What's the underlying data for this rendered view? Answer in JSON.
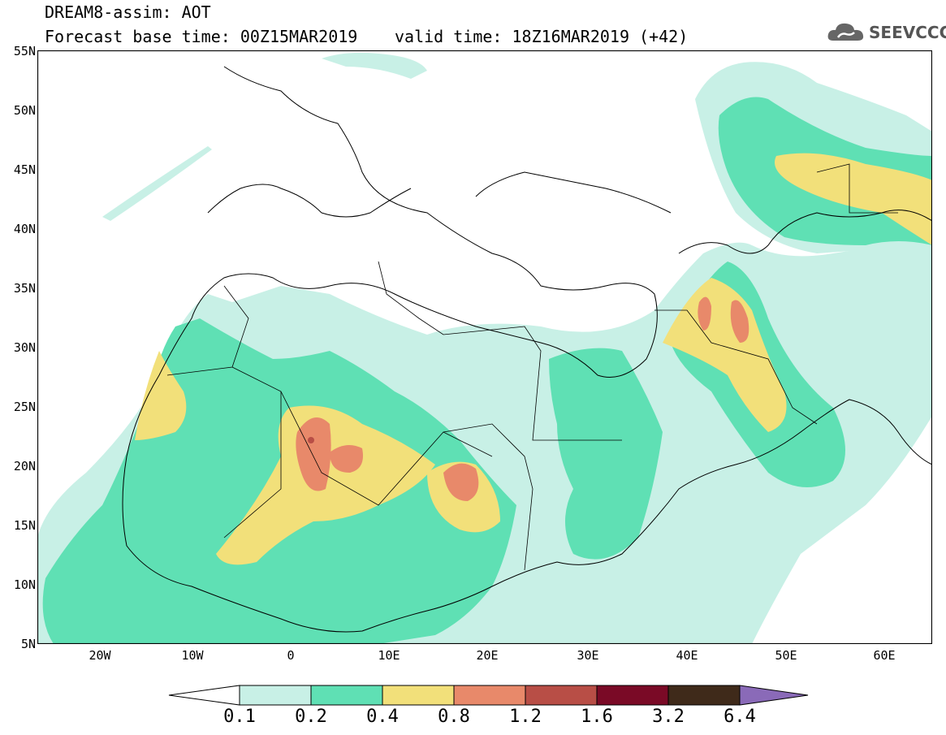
{
  "header": {
    "title": "DREAM8-assim: AOT",
    "base_time": "Forecast base time: 00Z15MAR2019",
    "valid_time": "valid time: 18Z16MAR2019 (+42)"
  },
  "logo": {
    "text": "SEEVCCC",
    "icon": "cloud-icon"
  },
  "axes": {
    "lat_labels": [
      "55N",
      "50N",
      "45N",
      "40N",
      "35N",
      "30N",
      "25N",
      "20N",
      "15N",
      "10N",
      "5N"
    ],
    "lon_labels": [
      "20W",
      "10W",
      "0",
      "10E",
      "20E",
      "30E",
      "40E",
      "50E",
      "60E"
    ]
  },
  "colorbar": {
    "levels": [
      "0.1",
      "0.2",
      "0.4",
      "0.8",
      "1.2",
      "1.6",
      "3.2",
      "6.4"
    ],
    "colors": [
      "#c8f0e6",
      "#5fe0b4",
      "#f2e07a",
      "#e8896a",
      "#b84e46",
      "#7a0a26",
      "#3f2a1a",
      "#8a6ab8"
    ]
  },
  "palette": {
    "c1": "#c8f0e6",
    "c2": "#5fe0b4",
    "c3": "#f2e07a",
    "c4": "#e8896a",
    "c5": "#b84e46"
  }
}
